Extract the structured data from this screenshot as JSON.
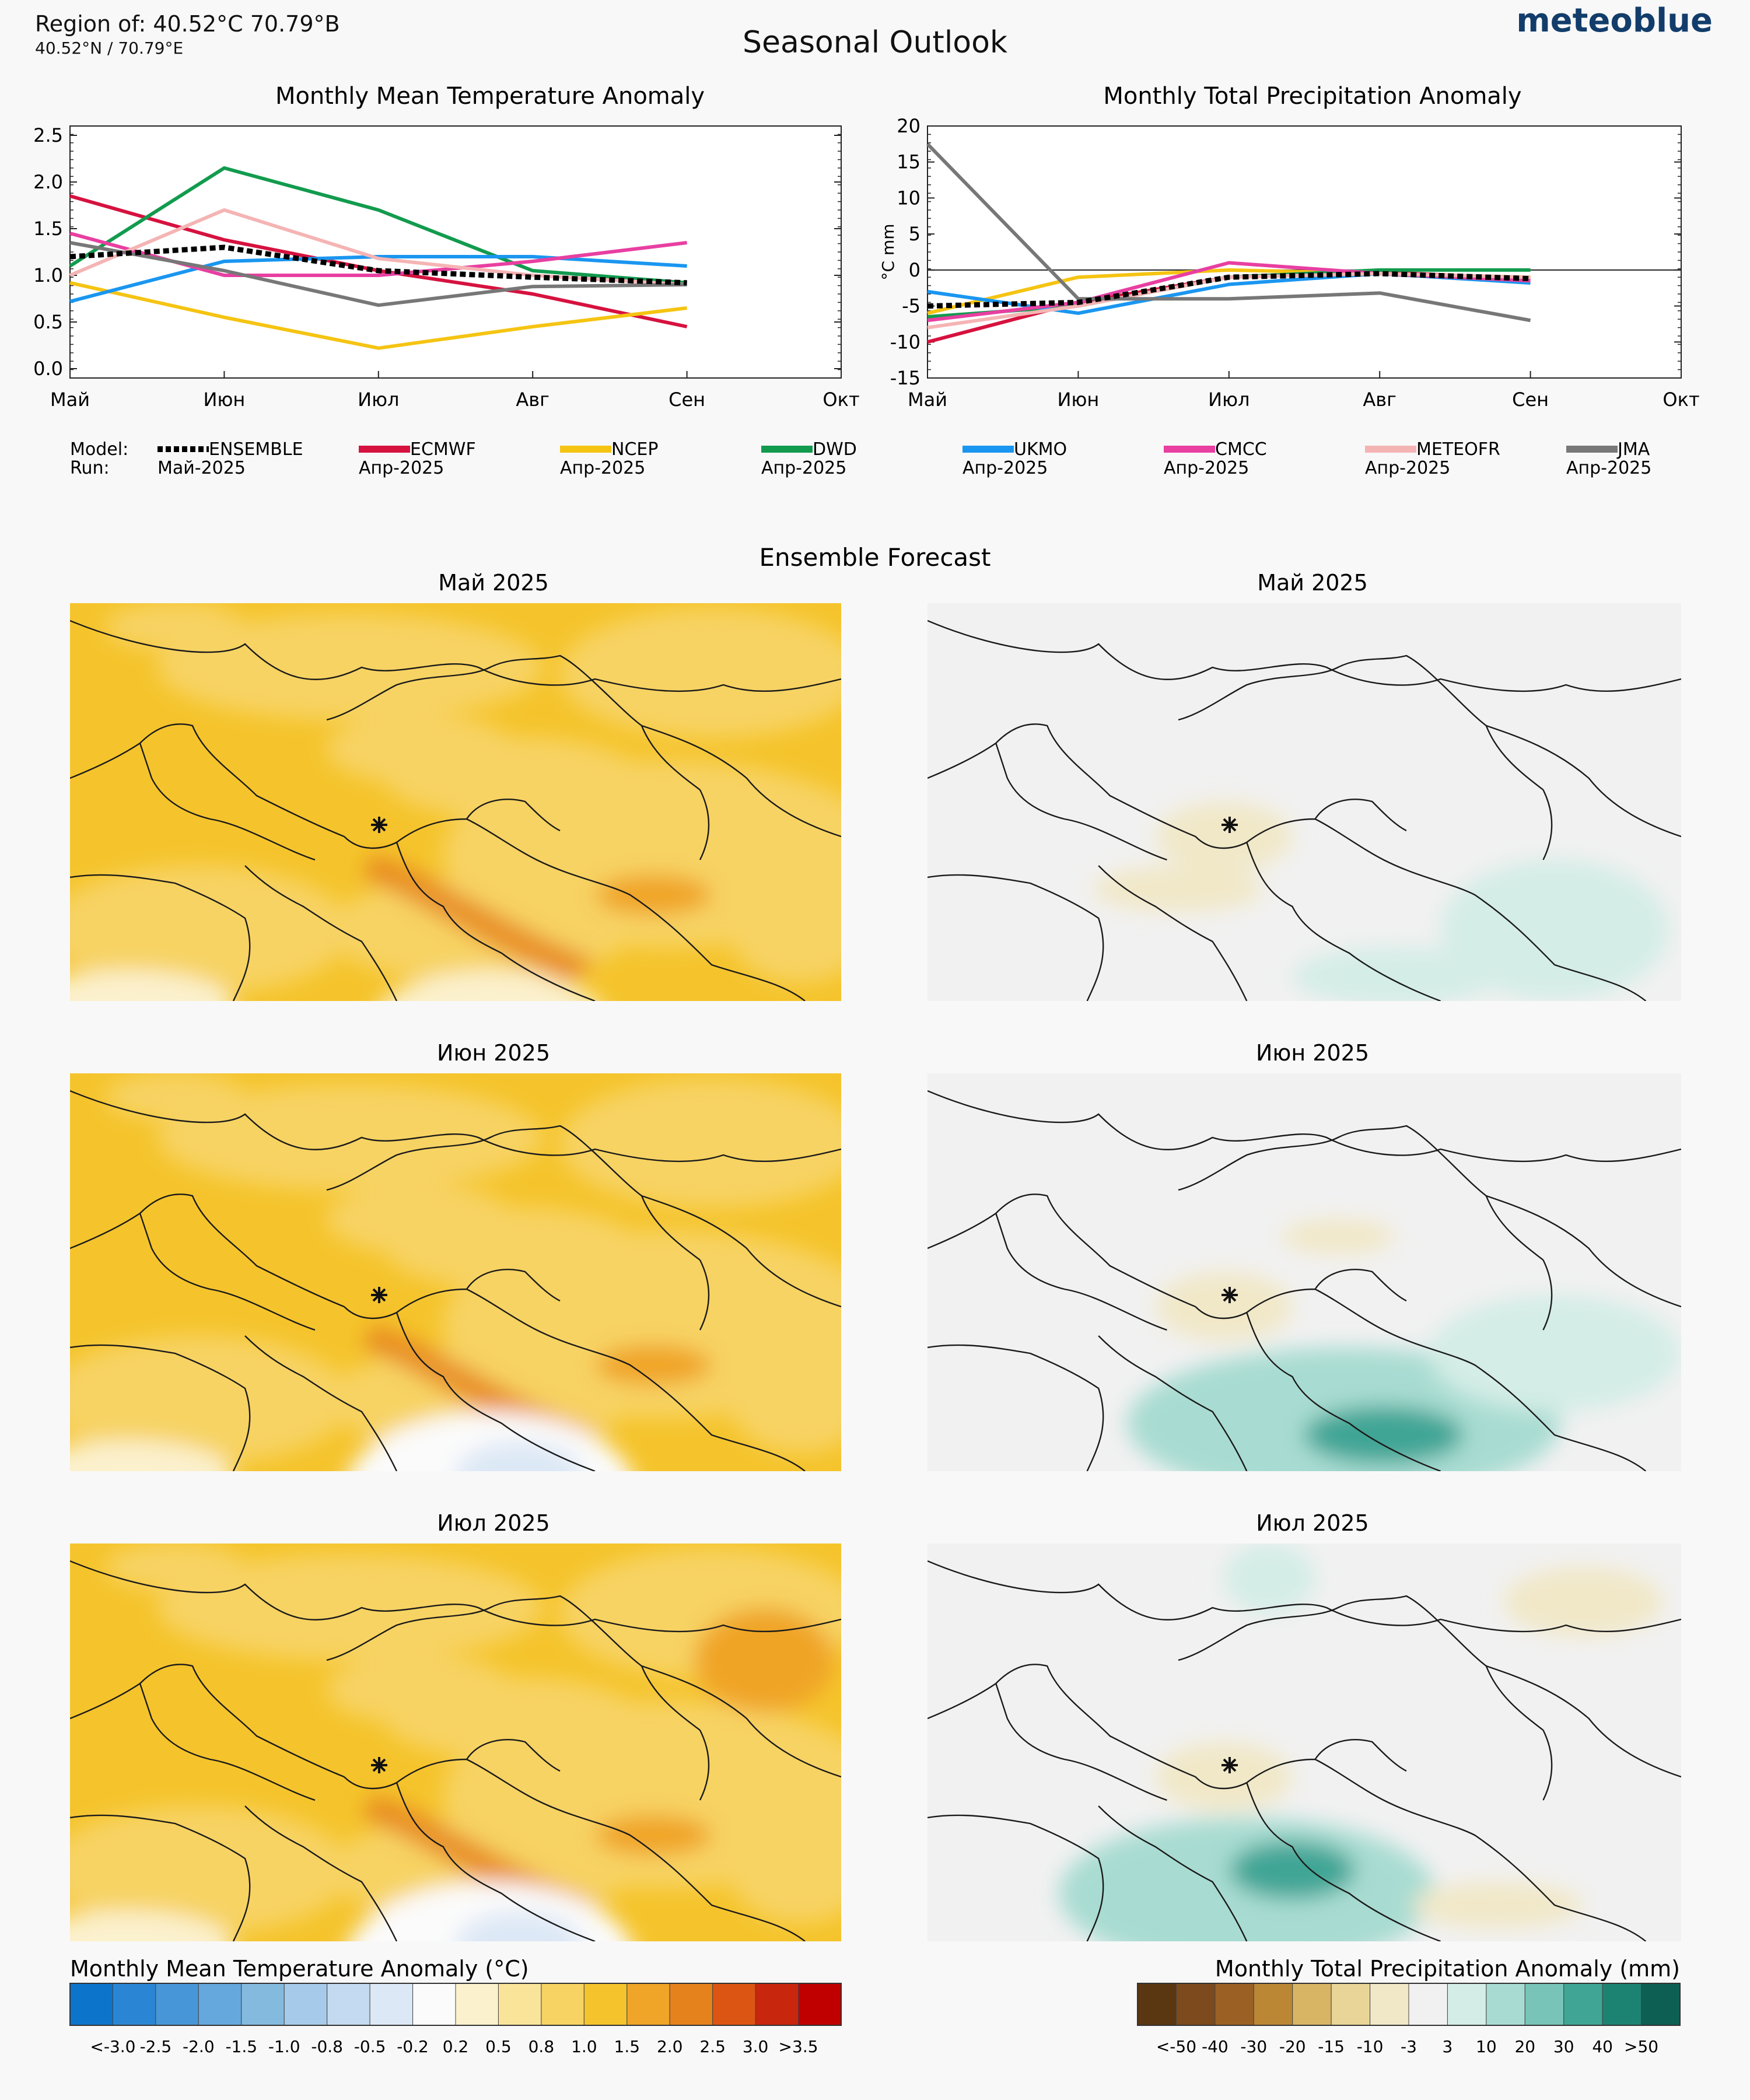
{
  "header": {
    "region": "Region of: 40.52°C 70.79°B",
    "coords": "40.52°N / 70.79°E",
    "title": "Seasonal Outlook",
    "brand": "meteoblue",
    "brand_color": "#123d6b"
  },
  "months": [
    "Май",
    "Июн",
    "Июл",
    "Авг",
    "Сен",
    "Окт"
  ],
  "chart_data": [
    {
      "type": "line",
      "title": "Monthly Mean Temperature Anomaly",
      "ylabel": "",
      "ylim": [
        -0.1,
        2.6
      ],
      "yticks": [
        "0.0",
        "0.5",
        "1.0",
        "1.5",
        "2.0",
        "2.5"
      ],
      "grid": false,
      "series": [
        {
          "name": "ENSEMBLE",
          "run": "Май-2025",
          "color": "#000000",
          "dashed": true,
          "values": [
            1.2,
            1.3,
            1.05,
            0.98,
            0.92
          ]
        },
        {
          "name": "ECMWF",
          "run": "Апр-2025",
          "color": "#d6123f",
          "dashed": false,
          "values": [
            1.85,
            1.38,
            1.05,
            0.8,
            0.45
          ]
        },
        {
          "name": "NCEP",
          "run": "Апр-2025",
          "color": "#f5c412",
          "dashed": false,
          "values": [
            0.92,
            0.55,
            0.22,
            0.45,
            0.65
          ]
        },
        {
          "name": "DWD",
          "run": "Апр-2025",
          "color": "#129b4e",
          "dashed": false,
          "values": [
            1.1,
            2.15,
            1.7,
            1.05,
            0.92
          ]
        },
        {
          "name": "UKMO",
          "run": "Апр-2025",
          "color": "#1a96f0",
          "dashed": false,
          "values": [
            0.72,
            1.15,
            1.2,
            1.2,
            1.1
          ]
        },
        {
          "name": "CMCC",
          "run": "Апр-2025",
          "color": "#e83fa1",
          "dashed": false,
          "values": [
            1.45,
            1.0,
            1.0,
            1.15,
            1.35
          ]
        },
        {
          "name": "METEOFR",
          "run": "Апр-2025",
          "color": "#f5b4b4",
          "dashed": false,
          "values": [
            1.0,
            1.7,
            1.18,
            1.0,
            0.9
          ]
        },
        {
          "name": "JMA",
          "run": "Апр-2025",
          "color": "#777777",
          "dashed": false,
          "values": [
            1.35,
            1.05,
            0.68,
            0.88,
            0.9
          ]
        }
      ]
    },
    {
      "type": "line",
      "title": "Monthly Total Precipitation Anomaly",
      "ylabel": "°C mm",
      "ylim": [
        -15,
        20
      ],
      "yticks": [
        "-15",
        "-10",
        "-5",
        "0",
        "5",
        "10",
        "15",
        "20"
      ],
      "grid": false,
      "series": [
        {
          "name": "ENSEMBLE",
          "color": "#000000",
          "dashed": true,
          "values": [
            -5,
            -4.5,
            -1,
            -0.5,
            -1.2
          ]
        },
        {
          "name": "ECMWF",
          "color": "#d6123f",
          "dashed": false,
          "values": [
            -10,
            -4.5,
            -1,
            -0.3,
            -1.2
          ]
        },
        {
          "name": "NCEP",
          "color": "#f5c412",
          "dashed": false,
          "values": [
            -6,
            -1,
            0,
            -0.5,
            -1
          ]
        },
        {
          "name": "DWD",
          "color": "#129b4e",
          "dashed": false,
          "values": [
            -6.5,
            -5,
            -1,
            0,
            0
          ]
        },
        {
          "name": "UKMO",
          "color": "#1a96f0",
          "dashed": false,
          "values": [
            -3,
            -6,
            -2,
            -0.5,
            -1.8
          ]
        },
        {
          "name": "CMCC",
          "color": "#e83fa1",
          "dashed": false,
          "values": [
            -7,
            -4.5,
            1,
            -0.5,
            -1.5
          ]
        },
        {
          "name": "METEOFR",
          "color": "#f5b4b4",
          "dashed": false,
          "values": [
            -8,
            -5,
            -1,
            -0.5,
            -1
          ]
        },
        {
          "name": "JMA",
          "color": "#777777",
          "dashed": false,
          "values": [
            17.5,
            -4,
            -4,
            -3.2,
            -7
          ]
        }
      ]
    }
  ],
  "legend": {
    "model_label": "Model:",
    "run_label": "Run:"
  },
  "ensemble": {
    "title": "Ensemble Forecast",
    "maps": [
      {
        "month": "Май 2025"
      },
      {
        "month": "Июн 2025"
      },
      {
        "month": "Июл 2025"
      }
    ]
  },
  "scales": {
    "temp": {
      "title": "Monthly Mean Temperature Anomaly (°C)",
      "labels": [
        "<-3.0",
        "-2.5",
        "-2.0",
        "-1.5",
        "-1.0",
        "-0.8",
        "-0.5",
        "-0.2",
        "0.2",
        "0.5",
        "0.8",
        "1.0",
        "1.5",
        "2.0",
        "2.5",
        "3.0",
        ">3.5"
      ],
      "colors": [
        "#0d74cc",
        "#2a86d4",
        "#4797d8",
        "#65a8de",
        "#85badf",
        "#a6cbea",
        "#c3daf0",
        "#dde8f6",
        "#fbfbfb",
        "#fbf1cd",
        "#f9e49a",
        "#f7d364",
        "#f5c42c",
        "#f0a428",
        "#e6821c",
        "#dd5512",
        "#c9260e",
        "#c00000"
      ]
    },
    "precip": {
      "title": "Monthly Total Precipitation Anomaly (mm)",
      "labels": [
        "<-50",
        "-40",
        "-30",
        "-20",
        "-15",
        "-10",
        "-3",
        "3",
        "10",
        "20",
        "30",
        "40",
        ">50"
      ],
      "colors": [
        "#5a3611",
        "#7c4a1c",
        "#9b6124",
        "#bb8734",
        "#d8b565",
        "#e9d597",
        "#f1e8c8",
        "#f1f1f1",
        "#d4ede6",
        "#a8dcd2",
        "#78c4b8",
        "#40a595",
        "#1c8373",
        "#0d5f53"
      ]
    }
  }
}
